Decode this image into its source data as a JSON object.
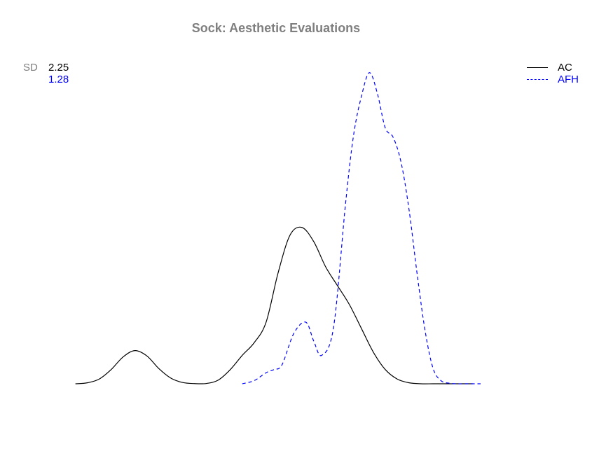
{
  "chart_data": {
    "type": "line",
    "title": "Sock: Aesthetic Evaluations",
    "xlabel": "",
    "ylabel": "",
    "grid": false,
    "legend_position": "top-right",
    "sd_label": "SD",
    "series": [
      {
        "name": "AC",
        "sd": "2.25",
        "color": "#000000",
        "dash": "solid",
        "x": [
          0.0,
          0.3,
          0.6,
          0.9,
          1.2,
          1.5,
          1.8,
          2.1,
          2.4,
          2.7,
          3.0,
          3.3,
          3.6,
          3.9,
          4.2,
          4.5,
          4.8,
          5.1,
          5.4,
          5.7,
          6.0,
          6.3,
          6.6,
          6.9,
          7.2,
          7.5,
          7.8,
          8.1,
          8.4,
          8.7,
          9.0,
          9.3,
          9.6,
          9.9,
          10.0
        ],
        "y": [
          0.0,
          0.3,
          1.5,
          4.5,
          8.5,
          10.5,
          8.8,
          4.8,
          1.8,
          0.4,
          0.05,
          0.1,
          1.2,
          4.5,
          9.0,
          13.0,
          19.5,
          35.0,
          47.0,
          49.5,
          45.0,
          37.0,
          31.0,
          25.0,
          17.5,
          10.0,
          4.5,
          1.5,
          0.3,
          0.0,
          0.0,
          0.0,
          0.0,
          0.0,
          0.0
        ],
        "x_range": [
          0.0,
          10.0
        ]
      },
      {
        "name": "AFH",
        "sd": "1.28",
        "color": "#0000ff",
        "dash": "dashed",
        "x": [
          4.2,
          4.5,
          4.8,
          5.0,
          5.2,
          5.5,
          5.8,
          6.0,
          6.2,
          6.5,
          6.8,
          7.0,
          7.2,
          7.4,
          7.6,
          7.8,
          8.0,
          8.2,
          8.4,
          8.6,
          8.8,
          9.0,
          9.2,
          9.4,
          9.6,
          9.8,
          10.2
        ],
        "y": [
          0.0,
          1.0,
          3.5,
          4.5,
          6.0,
          16.0,
          19.5,
          13.5,
          9.0,
          18.0,
          57.0,
          78.5,
          91.0,
          98.5,
          92.0,
          81.0,
          78.0,
          70.0,
          55.0,
          35.0,
          17.0,
          5.0,
          1.0,
          0.2,
          0.0,
          0.0,
          0.0
        ],
        "x_range": [
          4.2,
          10.2
        ]
      }
    ],
    "ylim": [
      0,
      100
    ],
    "xlim": [
      -0.1,
      10.2
    ]
  }
}
